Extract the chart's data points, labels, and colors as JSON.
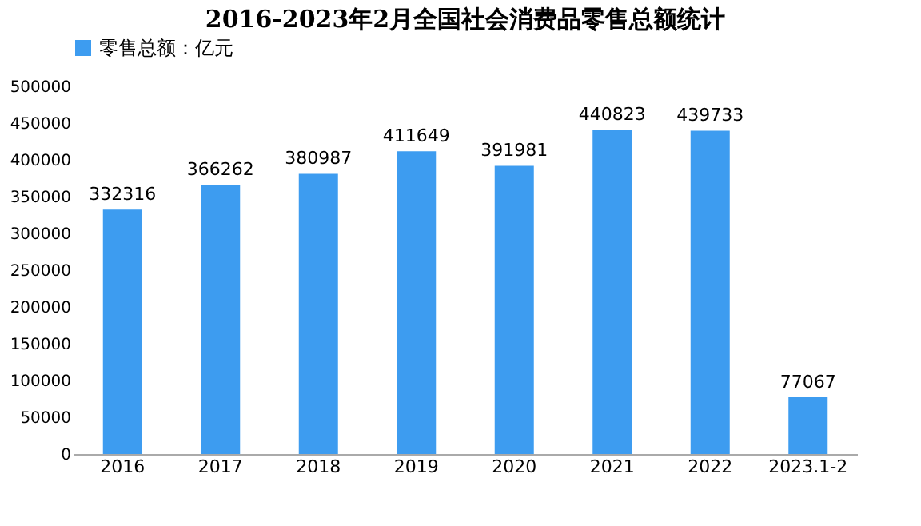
{
  "chart_data": {
    "type": "bar",
    "title": "2016-2023年2月全国社会消费品零售总额统计",
    "categories": [
      "2016",
      "2017",
      "2018",
      "2019",
      "2020",
      "2021",
      "2022",
      "2023.1-2"
    ],
    "series": [
      {
        "name": "零售总额：亿元",
        "color": "#3d9cf0",
        "values": [
          332316,
          366262,
          380987,
          411649,
          391981,
          440823,
          439733,
          77067
        ]
      }
    ],
    "ylim": [
      0,
      500000
    ],
    "yticks": [
      0,
      50000,
      100000,
      150000,
      200000,
      250000,
      300000,
      350000,
      400000,
      450000,
      500000
    ],
    "grid": false,
    "legend": "top",
    "data_labels": true
  }
}
